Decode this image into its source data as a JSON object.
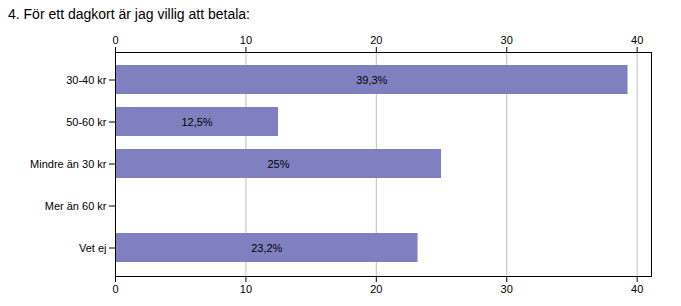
{
  "chart_data": {
    "type": "bar",
    "orientation": "horizontal",
    "title": "4. För ett dagkort är jag villig att betala:",
    "categories": [
      "30-40 kr",
      "50-60 kr",
      "Mindre än 30 kr",
      "Mer än 60 kr",
      "Vet ej"
    ],
    "values": [
      39.3,
      12.5,
      25.0,
      0.0,
      23.2
    ],
    "value_labels": [
      "39,3%",
      "12,5%",
      "25%",
      null,
      "23,2%"
    ],
    "data_labels": true,
    "color": "#8080C0",
    "xlim": [
      0,
      41.1
    ],
    "xticks": [
      0,
      10,
      20,
      30,
      40
    ],
    "grid": true
  }
}
